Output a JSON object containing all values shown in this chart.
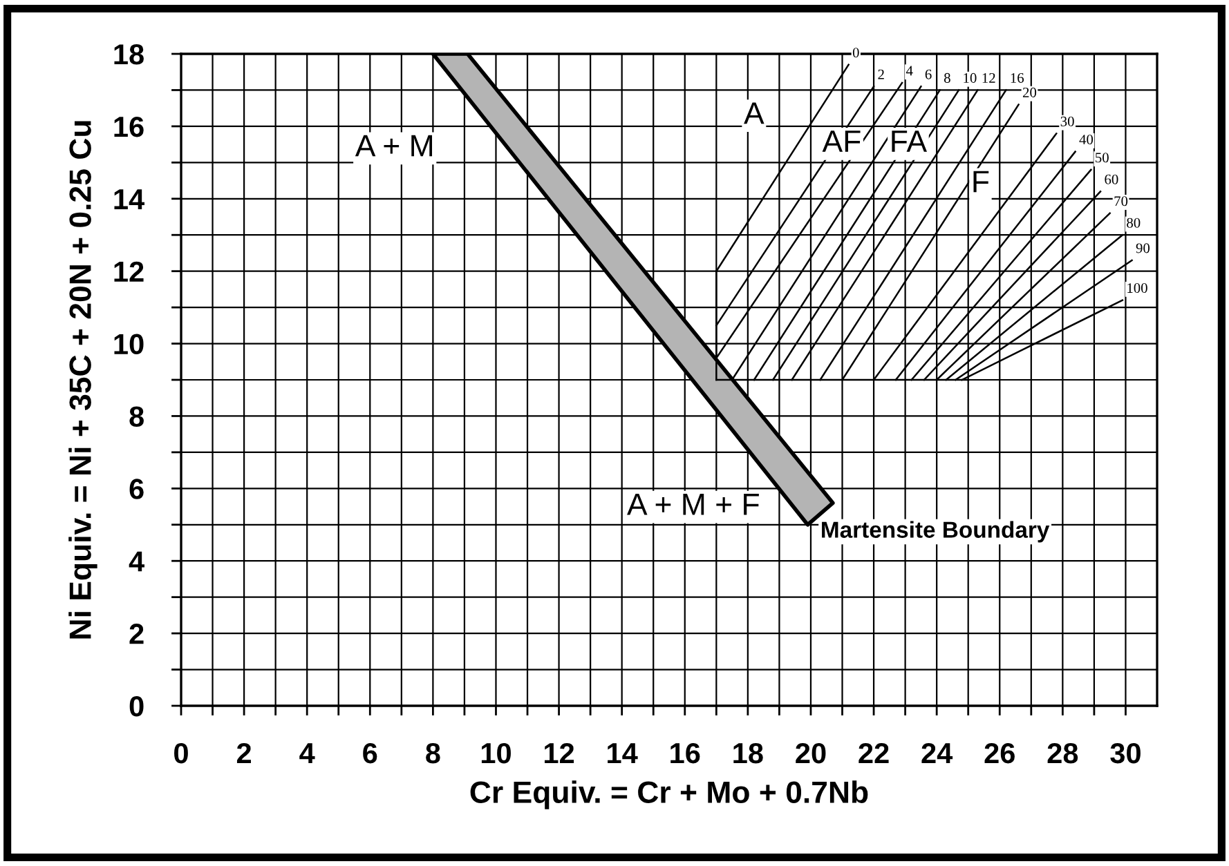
{
  "chart_data": {
    "type": "line",
    "xlabel": "Cr Equiv. = Cr + Mo + 0.7Nb",
    "ylabel": "Ni Equiv. = Ni + 35C + 20N + 0.25 Cu",
    "xlim": [
      0,
      31
    ],
    "ylim": [
      0,
      18
    ],
    "xticks": [
      0,
      {
        "value": 1,
        "label": null
      },
      2,
      {
        "value": 3,
        "label": null
      },
      4,
      {
        "value": 5,
        "label": null
      },
      6,
      {
        "value": 7,
        "label": null
      },
      8,
      {
        "value": 9,
        "label": null
      },
      10,
      {
        "value": 11,
        "label": null
      },
      12,
      {
        "value": 13,
        "label": null
      },
      14,
      {
        "value": 15,
        "label": null
      },
      16,
      {
        "value": 17,
        "label": null
      },
      18,
      {
        "value": 19,
        "label": null
      },
      20,
      {
        "value": 21,
        "label": null
      },
      22,
      {
        "value": 23,
        "label": null
      },
      24,
      {
        "value": 25,
        "label": null
      },
      26,
      {
        "value": 27,
        "label": null
      },
      28,
      {
        "value": 29,
        "label": null
      },
      30
    ],
    "yticks": [
      0,
      {
        "value": 1,
        "label": null
      },
      2,
      {
        "value": 3,
        "label": null
      },
      4,
      {
        "value": 5,
        "label": null
      },
      6,
      {
        "value": 7,
        "label": null
      },
      8,
      {
        "value": 9,
        "label": null
      },
      10,
      {
        "value": 11,
        "label": null
      },
      12,
      {
        "value": 13,
        "label": null
      },
      14,
      {
        "value": 15,
        "label": null
      },
      16,
      {
        "value": 17,
        "label": null
      },
      18
    ],
    "grid": true,
    "legend": false,
    "marker": "none",
    "line_style": "solid",
    "series": [
      {
        "type": "area",
        "color": "#b4b4b4",
        "x": [
          8,
          9.1,
          20.7,
          19.9,
          8
        ],
        "values": [
          18,
          18,
          5.6,
          5.0,
          18
        ]
      },
      {
        "color": "#000000",
        "x": [
          17,
          25
        ],
        "values": [
          9,
          9
        ]
      },
      {
        "color": "#000000",
        "x": [
          17,
          17
        ],
        "values": [
          9,
          12
        ]
      },
      {
        "name": "0",
        "color": "#000000",
        "x": [
          17,
          21.2
        ],
        "values": [
          12,
          17.7
        ]
      },
      {
        "name": "2",
        "color": "#000000",
        "x": [
          17,
          22
        ],
        "values": [
          10.5,
          17.1
        ]
      },
      {
        "name": "4",
        "color": "#000000",
        "x": [
          17,
          22.9
        ],
        "values": [
          9.6,
          17.2
        ]
      },
      {
        "name": "6",
        "color": "#000000",
        "x": [
          17.5,
          23.5
        ],
        "values": [
          9,
          17.1
        ]
      },
      {
        "name": "8",
        "color": "#000000",
        "x": [
          18.2,
          24.1
        ],
        "values": [
          9,
          17.0
        ]
      },
      {
        "name": "10",
        "color": "#000000",
        "x": [
          18.8,
          24.7
        ],
        "values": [
          9,
          17.0
        ]
      },
      {
        "name": "12",
        "color": "#000000",
        "x": [
          19.4,
          25.3
        ],
        "values": [
          9,
          17.0
        ]
      },
      {
        "name": "16",
        "color": "#000000",
        "x": [
          20.3,
          26.2
        ],
        "values": [
          9,
          17.0
        ]
      },
      {
        "name": "20",
        "color": "#000000",
        "x": [
          21.0,
          26.6
        ],
        "values": [
          9,
          16.6
        ]
      },
      {
        "name": "30",
        "color": "#000000",
        "x": [
          22.0,
          27.8
        ],
        "values": [
          9,
          15.8
        ]
      },
      {
        "name": "40",
        "color": "#000000",
        "x": [
          22.7,
          28.4
        ],
        "values": [
          9,
          15.3
        ]
      },
      {
        "name": "50",
        "color": "#000000",
        "x": [
          23.2,
          28.9
        ],
        "values": [
          9,
          14.8
        ]
      },
      {
        "name": "60",
        "color": "#000000",
        "x": [
          23.6,
          29.2
        ],
        "values": [
          9,
          14.2
        ]
      },
      {
        "name": "70",
        "color": "#000000",
        "x": [
          24.0,
          29.5
        ],
        "values": [
          9,
          13.6
        ]
      },
      {
        "name": "80",
        "color": "#000000",
        "x": [
          24.3,
          29.9
        ],
        "values": [
          9,
          13.0
        ]
      },
      {
        "name": "90",
        "color": "#000000",
        "x": [
          24.6,
          30.2
        ],
        "values": [
          9,
          12.3
        ]
      },
      {
        "name": "100",
        "color": "#000000",
        "x": [
          24.8,
          29.9
        ],
        "values": [
          9,
          11.2
        ]
      }
    ],
    "annotations": [
      "A",
      "AF",
      "FA",
      "F",
      "A + M",
      "A + M + F",
      "Martensite Boundary"
    ]
  }
}
